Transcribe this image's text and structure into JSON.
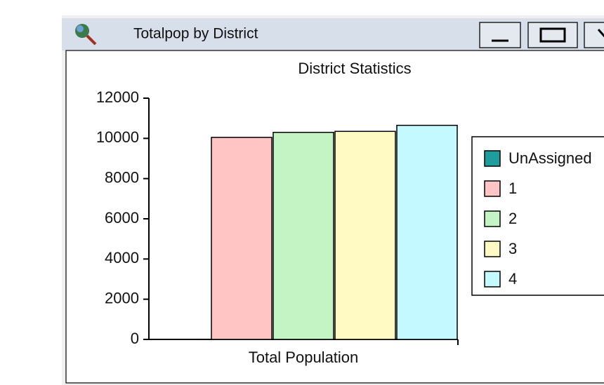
{
  "window": {
    "title": "Totalpop by District"
  },
  "chart_data": {
    "type": "bar",
    "title": "District Statistics",
    "xlabel": "Total Population",
    "categories": [
      "Total Population"
    ],
    "series": [
      {
        "name": "UnAssigned",
        "color": "#1f9c9c",
        "values": [
          0
        ]
      },
      {
        "name": "1",
        "color": "#ffc4c4",
        "values": [
          10050
        ]
      },
      {
        "name": "2",
        "color": "#c4f4c4",
        "values": [
          10300
        ]
      },
      {
        "name": "3",
        "color": "#fff9c4",
        "values": [
          10350
        ]
      },
      {
        "name": "4",
        "color": "#c4f9ff",
        "values": [
          10650
        ]
      }
    ],
    "ylim": [
      0,
      12000
    ],
    "yticks": [
      0,
      2000,
      4000,
      6000,
      8000,
      10000,
      12000
    ],
    "legend": "right"
  }
}
